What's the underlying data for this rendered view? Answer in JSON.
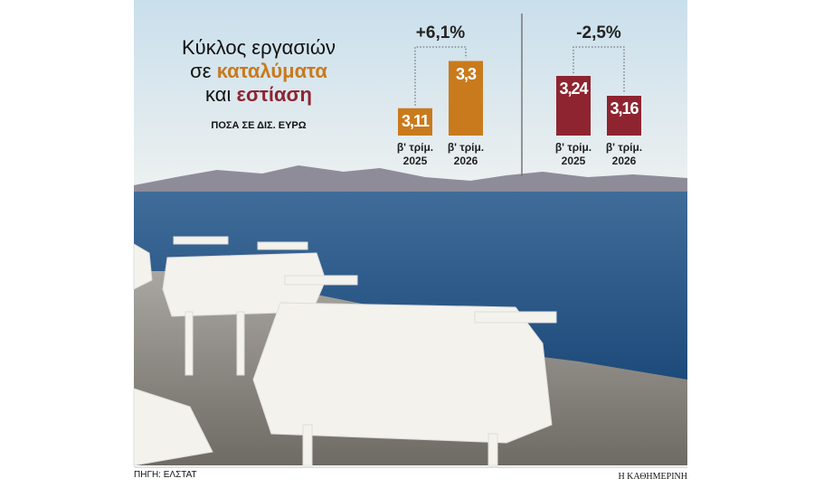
{
  "header": {
    "title": [
      "Κύκλος εργασιών",
      "σε",
      "καταλύματα",
      "και",
      "εστίαση"
    ],
    "subtitle": "ΠΟΣΑ ΣΕ ΔΙΣ. ΕΥΡΩ"
  },
  "chart_data": [
    {
      "type": "bar",
      "categories": [
        "β' τρίμ. 2025",
        "β' τρίμ. 2026"
      ],
      "values": [
        3.11,
        3.3
      ],
      "value_labels": [
        "3,11",
        "3,3"
      ],
      "color": "#c97a1c",
      "ylim": [
        3.0,
        3.4
      ],
      "annotation": "+6,1%"
    },
    {
      "type": "bar",
      "categories": [
        "β' τρίμ. 2025",
        "β' τρίμ. 2026"
      ],
      "values": [
        3.24,
        3.16
      ],
      "value_labels": [
        "3,24",
        "3,16"
      ],
      "color": "#8e2430",
      "ylim": [
        3.0,
        3.4
      ],
      "annotation": "-2,5%"
    }
  ],
  "footer": {
    "source": "ΠΗΓΗ: ΕΛΣΤΑΤ",
    "credit": "Η ΚΑΘΗΜΕΡΙΝΗ"
  }
}
